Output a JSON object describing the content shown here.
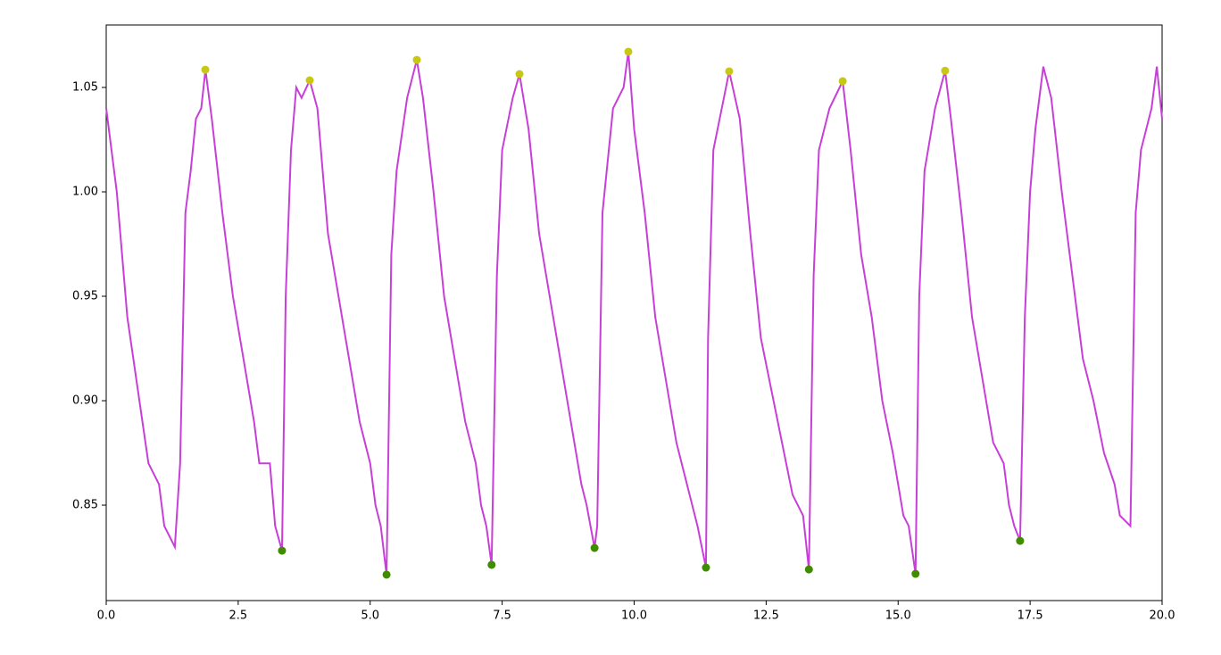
{
  "chart_data": {
    "type": "line",
    "x": [
      0,
      0.2,
      0.4,
      0.6,
      0.8,
      1.0,
      1.1,
      1.3,
      1.4,
      1.5,
      1.6,
      1.7,
      1.8,
      1.88,
      2.0,
      2.2,
      2.4,
      2.6,
      2.8,
      2.9,
      3.1,
      3.2,
      3.33,
      3.4,
      3.5,
      3.6,
      3.7,
      3.855,
      4.0,
      4.2,
      4.4,
      4.6,
      4.8,
      5.0,
      5.1,
      5.2,
      5.31,
      5.4,
      5.5,
      5.7,
      5.883,
      6.0,
      6.2,
      6.4,
      6.6,
      6.8,
      7.0,
      7.1,
      7.2,
      7.3,
      7.4,
      7.5,
      7.7,
      7.828,
      8.0,
      8.2,
      8.4,
      8.6,
      8.8,
      9.0,
      9.1,
      9.25,
      9.3,
      9.4,
      9.6,
      9.8,
      9.89,
      10.0,
      10.2,
      10.4,
      10.6,
      10.8,
      11.0,
      11.2,
      11.36,
      11.4,
      11.5,
      11.7,
      11.8,
      12.0,
      12.2,
      12.4,
      12.6,
      12.8,
      13.0,
      13.2,
      13.31,
      13.4,
      13.5,
      13.7,
      13.95,
      14.1,
      14.3,
      14.5,
      14.7,
      14.9,
      15.1,
      15.2,
      15.33,
      15.4,
      15.5,
      15.7,
      15.89,
      16.0,
      16.2,
      16.4,
      16.6,
      16.8,
      17.0,
      17.1,
      17.2,
      17.31,
      17.4,
      17.5,
      17.6,
      17.75,
      17.9,
      18.1,
      18.3,
      18.5,
      18.7,
      18.9,
      19.1,
      19.2,
      19.4,
      19.5,
      19.6,
      19.8,
      19.9,
      20.0
    ],
    "values": [
      1.04,
      1.0,
      0.94,
      0.905,
      0.87,
      0.86,
      0.84,
      0.83,
      0.87,
      0.99,
      1.01,
      1.035,
      1.04,
      1.0585,
      1.035,
      0.99,
      0.95,
      0.92,
      0.89,
      0.87,
      0.87,
      0.84,
      0.8282,
      0.95,
      1.02,
      1.05,
      1.045,
      1.0534,
      1.04,
      0.98,
      0.95,
      0.92,
      0.89,
      0.87,
      0.85,
      0.84,
      0.8167,
      0.97,
      1.01,
      1.045,
      1.0632,
      1.045,
      1.0,
      0.95,
      0.92,
      0.89,
      0.87,
      0.85,
      0.84,
      0.8214,
      0.96,
      1.02,
      1.045,
      1.0564,
      1.03,
      0.98,
      0.95,
      0.92,
      0.89,
      0.86,
      0.85,
      0.8295,
      0.84,
      0.99,
      1.04,
      1.05,
      1.0671,
      1.03,
      0.99,
      0.94,
      0.91,
      0.88,
      0.86,
      0.84,
      0.8201,
      0.93,
      1.02,
      1.045,
      1.0577,
      1.035,
      0.98,
      0.93,
      0.905,
      0.88,
      0.855,
      0.845,
      0.8192,
      0.96,
      1.02,
      1.04,
      1.053,
      1.02,
      0.97,
      0.94,
      0.9,
      0.875,
      0.845,
      0.84,
      0.8171,
      0.95,
      1.01,
      1.04,
      1.058,
      1.035,
      0.99,
      0.94,
      0.91,
      0.88,
      0.87,
      0.85,
      0.84,
      0.8329,
      0.94,
      1.0,
      1.03,
      1.06,
      1.045,
      1.0,
      0.96,
      0.92,
      0.9,
      0.875,
      0.86,
      0.845,
      0.84,
      0.99,
      1.02,
      1.04,
      1.06,
      1.035
    ],
    "color": "#c83fd8",
    "peaks": {
      "x": [
        1.877,
        3.855,
        5.883,
        7.828,
        9.89,
        11.8,
        13.95,
        15.89
      ],
      "values": [
        1.0585,
        1.0534,
        1.0632,
        1.0564,
        1.0671,
        1.0577,
        1.053,
        1.058
      ],
      "color": "#c8c814"
    },
    "troughs": {
      "x": [
        3.33,
        5.31,
        7.3,
        9.25,
        11.36,
        13.31,
        15.33,
        17.31
      ],
      "values": [
        0.8282,
        0.8167,
        0.8214,
        0.8295,
        0.8201,
        0.8192,
        0.8171,
        0.8329
      ],
      "color": "#3f8c00"
    },
    "xlim": [
      0,
      20
    ],
    "xticks": [
      {
        "value": 0,
        "label": "0.0"
      },
      2.5,
      {
        "value": 5,
        "label": "5.0"
      },
      7.5,
      {
        "value": 10,
        "label": "10.0"
      },
      12.5,
      {
        "value": 15,
        "label": "15.0"
      },
      17.5,
      {
        "value": 20,
        "label": "20.0"
      }
    ],
    "ylim": [
      0.8043,
      1.0799
    ],
    "yticks": [
      0.85,
      {
        "value": 0.9,
        "label": "0.90"
      },
      0.95,
      {
        "value": 1.0,
        "label": "1.00"
      },
      1.05
    ]
  }
}
